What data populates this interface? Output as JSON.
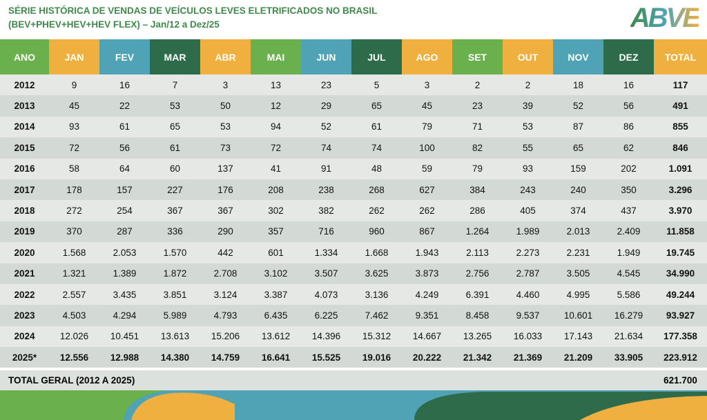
{
  "header": {
    "title_line1": "SÉRIE HISTÓRICA DE VENDAS DE VEÍCULOS LEVES ELETRIFICADOS NO BRASIL",
    "title_line2": "(BEV+PHEV+HEV+HEV FLEX) – Jan/12 a Dez/25",
    "logo": "ABVE"
  },
  "table": {
    "columns": [
      "ANO",
      "JAN",
      "FEV",
      "MAR",
      "ABR",
      "MAI",
      "JUN",
      "JUL",
      "AGO",
      "SET",
      "OUT",
      "NOV",
      "DEZ",
      "TOTAL"
    ],
    "rows": [
      [
        "2012",
        "9",
        "16",
        "7",
        "3",
        "13",
        "23",
        "5",
        "3",
        "2",
        "2",
        "18",
        "16",
        "117"
      ],
      [
        "2013",
        "45",
        "22",
        "53",
        "50",
        "12",
        "29",
        "65",
        "45",
        "23",
        "39",
        "52",
        "56",
        "491"
      ],
      [
        "2014",
        "93",
        "61",
        "65",
        "53",
        "94",
        "52",
        "61",
        "79",
        "71",
        "53",
        "87",
        "86",
        "855"
      ],
      [
        "2015",
        "72",
        "56",
        "61",
        "73",
        "72",
        "74",
        "74",
        "100",
        "82",
        "55",
        "65",
        "62",
        "846"
      ],
      [
        "2016",
        "58",
        "64",
        "60",
        "137",
        "41",
        "91",
        "48",
        "59",
        "79",
        "93",
        "159",
        "202",
        "1.091"
      ],
      [
        "2017",
        "178",
        "157",
        "227",
        "176",
        "208",
        "238",
        "268",
        "627",
        "384",
        "243",
        "240",
        "350",
        "3.296"
      ],
      [
        "2018",
        "272",
        "254",
        "367",
        "367",
        "302",
        "382",
        "262",
        "262",
        "286",
        "405",
        "374",
        "437",
        "3.970"
      ],
      [
        "2019",
        "370",
        "287",
        "336",
        "290",
        "357",
        "716",
        "960",
        "867",
        "1.264",
        "1.989",
        "2.013",
        "2.409",
        "11.858"
      ],
      [
        "2020",
        "1.568",
        "2.053",
        "1.570",
        "442",
        "601",
        "1.334",
        "1.668",
        "1.943",
        "2.113",
        "2.273",
        "2.231",
        "1.949",
        "19.745"
      ],
      [
        "2021",
        "1.321",
        "1.389",
        "1.872",
        "2.708",
        "3.102",
        "3.507",
        "3.625",
        "3.873",
        "2.756",
        "2.787",
        "3.505",
        "4.545",
        "34.990"
      ],
      [
        "2022",
        "2.557",
        "3.435",
        "3.851",
        "3.124",
        "3.387",
        "4.073",
        "3.136",
        "4.249",
        "6.391",
        "4.460",
        "4.995",
        "5.586",
        "49.244"
      ],
      [
        "2023",
        "4.503",
        "4.294",
        "5.989",
        "4.793",
        "6.435",
        "6.225",
        "7.462",
        "9.351",
        "8.458",
        "9.537",
        "10.601",
        "16.279",
        "93.927"
      ],
      [
        "2024",
        "12.026",
        "10.451",
        "13.613",
        "15.206",
        "13.612",
        "14.396",
        "15.312",
        "14.667",
        "13.265",
        "16.033",
        "17.143",
        "21.634",
        "177.358"
      ],
      [
        "2025*",
        "12.556",
        "12.988",
        "14.380",
        "14.759",
        "16.641",
        "15.525",
        "19.016",
        "20.222",
        "21.342",
        "21.369",
        "21.209",
        "33.905",
        "223.912"
      ]
    ],
    "total_label": "TOTAL GERAL (2012 A 2025)",
    "total_value": "621.700"
  }
}
